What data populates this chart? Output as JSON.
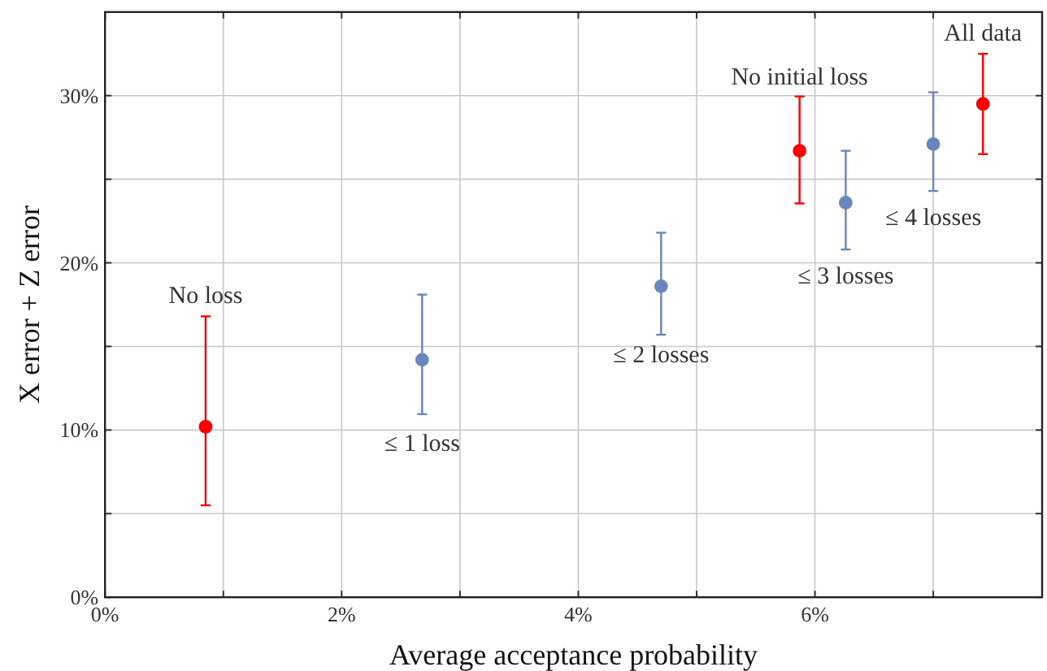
{
  "chart_data": {
    "type": "scatter",
    "xlabel": "Average acceptance probability",
    "ylabel": "X error + Z error",
    "xlim": [
      0,
      7.92
    ],
    "ylim": [
      0,
      35
    ],
    "xticks": [
      {
        "value": 0,
        "label": "0%"
      },
      {
        "value": 1,
        "label": null
      },
      {
        "value": 2,
        "label": "2%"
      },
      {
        "value": 3,
        "label": null
      },
      {
        "value": 4,
        "label": "4%"
      },
      {
        "value": 5,
        "label": null
      },
      {
        "value": 6,
        "label": "6%"
      },
      {
        "value": 7,
        "label": null
      }
    ],
    "yticks": [
      {
        "value": 0,
        "label": "0%"
      },
      {
        "value": 5,
        "label": null
      },
      {
        "value": 10,
        "label": "10%"
      },
      {
        "value": 15,
        "label": null
      },
      {
        "value": 20,
        "label": "20%"
      },
      {
        "value": 25,
        "label": null
      },
      {
        "value": 30,
        "label": "30%"
      }
    ],
    "grid": true,
    "marker": "circle",
    "series": [
      {
        "color": "#ff0000",
        "x": [
          0.85,
          5.87,
          7.42
        ],
        "values": [
          10.2,
          26.7,
          29.5
        ],
        "errors": [
          [
            5.5,
            16.8
          ],
          [
            23.55,
            29.95
          ],
          [
            26.5,
            32.5
          ]
        ]
      },
      {
        "color": "#6a86bd",
        "x": [
          2.68,
          4.7,
          6.26,
          7.0
        ],
        "values": [
          14.2,
          18.6,
          23.6,
          27.1
        ],
        "errors": [
          [
            10.95,
            18.1
          ],
          [
            15.7,
            21.8
          ],
          [
            20.8,
            26.7
          ],
          [
            24.3,
            30.2
          ]
        ]
      }
    ],
    "annotations": [
      {
        "text": "No loss",
        "x": 0.85,
        "y": 16.8
      },
      {
        "text": "≤ 1 loss",
        "x": 2.68,
        "y": 14.2
      },
      {
        "text": "≤ 2 losses",
        "x": 4.7,
        "y": 18.6
      },
      {
        "text": "No initial loss",
        "x": 5.87,
        "y": 26.7
      },
      {
        "text": "≤ 3 losses",
        "x": 6.26,
        "y": 23.6
      },
      {
        "text": "≤ 4 losses",
        "x": 7.0,
        "y": 27.1
      },
      {
        "text": "All data",
        "x": 7.42,
        "y": 29.5
      }
    ]
  }
}
